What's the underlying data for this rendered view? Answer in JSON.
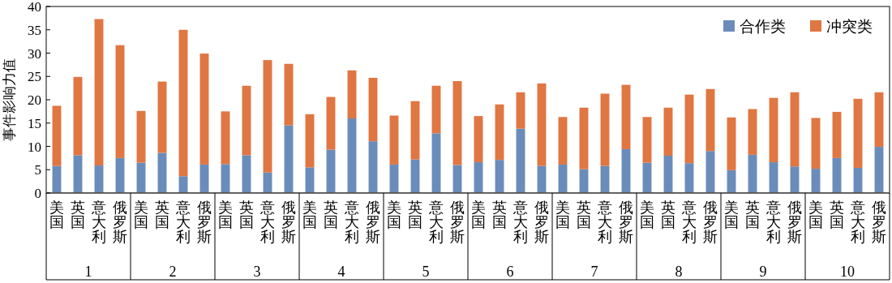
{
  "chart_data": {
    "type": "bar",
    "stacked": true,
    "ylabel": "事件影响力值",
    "categories": [
      "美国",
      "英国",
      "意大利",
      "俄罗斯",
      "美国",
      "英国",
      "意大利",
      "俄罗斯",
      "美国",
      "英国",
      "意大利",
      "俄罗斯",
      "美国",
      "英国",
      "意大利",
      "俄罗斯",
      "美国",
      "英国",
      "意大利",
      "俄罗斯",
      "美国",
      "英国",
      "意大利",
      "俄罗斯",
      "美国",
      "英国",
      "意大利",
      "俄罗斯",
      "美国",
      "英国",
      "意大利",
      "俄罗斯",
      "美国",
      "英国",
      "意大利",
      "俄罗斯",
      "美国",
      "英国",
      "意大利",
      "俄罗斯"
    ],
    "annotations": [
      "1",
      "2",
      "3",
      "4",
      "5",
      "6",
      "7",
      "8",
      "9",
      "10"
    ],
    "series": [
      {
        "name": "合作类",
        "color": "#6a8cba",
        "values": [
          5.8,
          8.1,
          5.9,
          7.5,
          6.5,
          8.6,
          3.6,
          6.1,
          6.2,
          8.1,
          4.4,
          14.5,
          5.5,
          9.3,
          16.0,
          11.1,
          6.1,
          7.2,
          12.8,
          6.0,
          6.6,
          7.1,
          13.8,
          5.8,
          6.1,
          5.1,
          5.8,
          9.4,
          6.5,
          8.0,
          6.4,
          9.0,
          4.9,
          8.2,
          6.6,
          5.7,
          5.2,
          7.5,
          5.4,
          9.9
        ]
      },
      {
        "name": "冲突类",
        "color": "#e07642",
        "values": [
          12.9,
          16.8,
          31.4,
          24.2,
          11.1,
          15.3,
          31.4,
          23.8,
          11.3,
          14.9,
          24.1,
          13.2,
          11.4,
          11.3,
          10.3,
          13.6,
          10.5,
          12.5,
          10.2,
          18.0,
          9.9,
          11.9,
          7.8,
          17.7,
          10.2,
          13.2,
          15.5,
          13.8,
          9.8,
          10.3,
          14.7,
          13.3,
          11.3,
          9.8,
          13.8,
          15.9,
          10.9,
          9.9,
          14.8,
          11.7
        ]
      }
    ],
    "ylim": [
      0,
      40
    ],
    "yticks": [
      0,
      5,
      10,
      15,
      20,
      25,
      30,
      35,
      40
    ],
    "grid": false,
    "legend": "top right"
  }
}
